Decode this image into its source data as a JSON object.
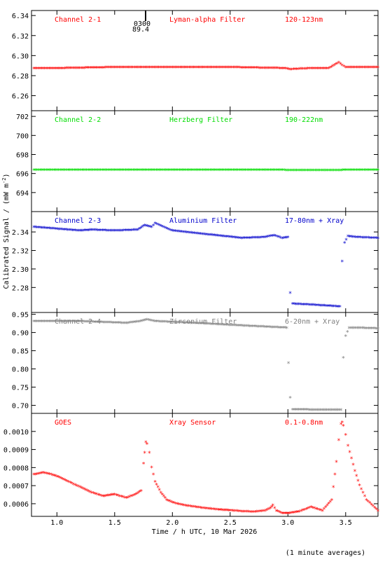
{
  "figure": {
    "x_label": "Time / h UTC, 10 Mar 2026",
    "y_label": "Calibrated Signal / (mW m",
    "y_label_sup": "-2",
    "y_label_end": ")",
    "note": "(1 minute averages)",
    "marker_label_top": "0300",
    "marker_label_bottom": "89.4"
  },
  "colors": {
    "red": "#ff0000",
    "green": "#00dd00",
    "blue": "#0000cc",
    "gray": "#808080"
  },
  "chart_data": [
    {
      "type": "scatter",
      "header": [
        "Channel 2-1",
        "Lyman-alpha Filter",
        "120-123nm"
      ],
      "color": "#ff0000",
      "xlim": [
        0.78,
        3.78
      ],
      "ylim": [
        6.245,
        6.345
      ],
      "yticks": [
        6.26,
        6.28,
        6.3,
        6.32,
        6.34
      ],
      "ytick_labels": [
        "6.26",
        "6.28",
        "6.30",
        "6.32",
        "6.34"
      ],
      "x": [
        0.8,
        1.0,
        1.5,
        2.0,
        2.5,
        2.98,
        3.02,
        3.2,
        3.35,
        3.4,
        3.44,
        3.47,
        3.5,
        3.78
      ],
      "y": [
        6.287,
        6.287,
        6.288,
        6.288,
        6.288,
        6.287,
        6.286,
        6.287,
        6.287,
        6.29,
        6.293,
        6.29,
        6.288,
        6.288
      ]
    },
    {
      "type": "scatter",
      "header": [
        "Channel 2-2",
        "Herzberg Filter",
        "190-222nm"
      ],
      "color": "#00dd00",
      "xlim": [
        0.78,
        3.78
      ],
      "ylim": [
        692.0,
        702.6
      ],
      "yticks": [
        694,
        696,
        698,
        700,
        702
      ],
      "ytick_labels": [
        "694",
        "696",
        "698",
        "700",
        "702"
      ],
      "x": [
        0.8,
        1.5,
        2.5,
        3.45,
        3.5,
        3.78
      ],
      "y": [
        696.35,
        696.35,
        696.35,
        696.3,
        696.35,
        696.35
      ]
    },
    {
      "type": "scatter",
      "header": [
        "Channel 2-3",
        "Aluminium Filter",
        "17-80nm + Xray"
      ],
      "color": "#0000cc",
      "xlim": [
        0.78,
        3.78
      ],
      "ylim": [
        2.253,
        2.362
      ],
      "yticks": [
        2.28,
        2.3,
        2.32,
        2.34
      ],
      "ytick_labels": [
        "2.28",
        "2.30",
        "2.32",
        "2.34"
      ],
      "x": [
        0.8,
        1.0,
        1.2,
        1.3,
        1.5,
        1.7,
        1.76,
        1.82,
        1.85,
        2.0,
        2.3,
        2.6,
        2.8,
        2.88,
        2.95,
        3.0,
        3.02,
        3.04,
        3.2,
        3.45,
        3.47,
        3.49,
        3.52,
        3.6,
        3.78
      ],
      "y": [
        2.345,
        2.343,
        2.341,
        2.342,
        2.341,
        2.342,
        2.347,
        2.345,
        2.349,
        2.341,
        2.337,
        2.333,
        2.334,
        2.336,
        2.333,
        2.334,
        2.274,
        2.262,
        2.261,
        2.259,
        2.308,
        2.328,
        2.335,
        2.334,
        2.333
      ]
    },
    {
      "type": "scatter",
      "header": [
        "Channel 2-4",
        "Zirconium Filter",
        "6-20nm + Xray"
      ],
      "color": "#808080",
      "xlim": [
        0.78,
        3.78
      ],
      "ylim": [
        0.678,
        0.955
      ],
      "yticks": [
        0.7,
        0.75,
        0.8,
        0.85,
        0.9,
        0.95
      ],
      "ytick_labels": [
        "0.70",
        "0.75",
        "0.80",
        "0.85",
        "0.90",
        "0.95"
      ],
      "x": [
        0.8,
        1.2,
        1.6,
        1.72,
        1.78,
        1.85,
        2.2,
        2.6,
        2.99,
        3.02,
        3.04,
        3.2,
        3.46,
        3.48,
        3.5,
        3.53,
        3.6,
        3.78
      ],
      "y": [
        0.93,
        0.93,
        0.925,
        0.93,
        0.935,
        0.93,
        0.925,
        0.918,
        0.912,
        0.72,
        0.688,
        0.687,
        0.687,
        0.83,
        0.89,
        0.912,
        0.912,
        0.91
      ]
    },
    {
      "type": "scatter",
      "header": [
        "GOES",
        "Xray Sensor",
        "0.1-0.8nm"
      ],
      "color": "#ff0000",
      "xlim": [
        0.78,
        3.78
      ],
      "ylim": [
        0.00053,
        0.0011
      ],
      "yticks": [
        0.0006,
        0.0007,
        0.0008,
        0.0009,
        0.001
      ],
      "ytick_labels": [
        "0.0006",
        "0.0007",
        "0.0008",
        "0.0009",
        "0.0010"
      ],
      "x_ticks": [
        1.0,
        1.5,
        2.0,
        2.5,
        3.0,
        3.5
      ],
      "x_tick_labels": [
        "1.0",
        "1.5",
        "2.0",
        "2.5",
        "3.0",
        "3.5"
      ],
      "x": [
        0.8,
        0.88,
        0.95,
        1.0,
        1.1,
        1.2,
        1.3,
        1.4,
        1.5,
        1.6,
        1.68,
        1.73,
        1.75,
        1.76,
        1.77,
        1.78,
        1.8,
        1.82,
        1.85,
        1.9,
        1.95,
        2.0,
        2.1,
        2.2,
        2.3,
        2.4,
        2.5,
        2.6,
        2.7,
        2.8,
        2.85,
        2.87,
        2.9,
        2.95,
        3.0,
        3.1,
        3.2,
        3.3,
        3.38,
        3.42,
        3.44,
        3.46,
        3.47,
        3.48,
        3.5,
        3.52,
        3.55,
        3.58,
        3.62,
        3.68,
        3.78
      ],
      "y": [
        0.00076,
        0.00077,
        0.00076,
        0.00075,
        0.00072,
        0.00069,
        0.00066,
        0.00064,
        0.00065,
        0.00063,
        0.00065,
        0.00067,
        0.00082,
        0.00088,
        0.00094,
        0.00093,
        0.00088,
        0.0008,
        0.00072,
        0.00066,
        0.00062,
        0.000605,
        0.00059,
        0.00058,
        0.000572,
        0.000565,
        0.000561,
        0.000556,
        0.000553,
        0.00056,
        0.000575,
        0.00059,
        0.00056,
        0.000545,
        0.000545,
        0.000555,
        0.00058,
        0.00056,
        0.00062,
        0.00083,
        0.00095,
        0.00104,
        0.00105,
        0.00103,
        0.00098,
        0.00092,
        0.00085,
        0.00078,
        0.0007,
        0.00062,
        0.00056
      ]
    }
  ]
}
